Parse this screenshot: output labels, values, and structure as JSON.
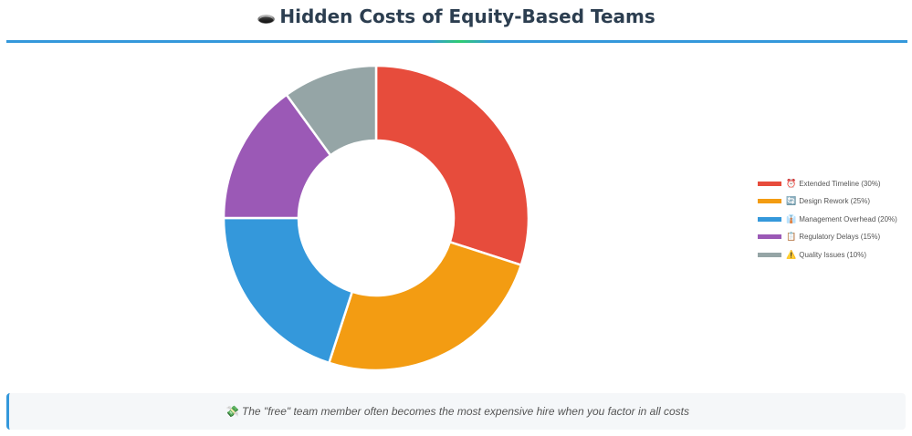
{
  "header": {
    "icon": "🕳️",
    "title": "Hidden Costs of Equity-Based Teams"
  },
  "chart_data": {
    "type": "pie",
    "donut": true,
    "categories": [
      "Extended Timeline",
      "Design Rework",
      "Management Overhead",
      "Regulatory Delays",
      "Quality Issues"
    ],
    "values": [
      30,
      25,
      20,
      15,
      10
    ],
    "colors": [
      "#e74c3c",
      "#f39c12",
      "#3498db",
      "#9b59b6",
      "#95a5a6"
    ],
    "legend_position": "right",
    "legend": [
      {
        "icon": "⏰",
        "label": "Extended Timeline (30%)",
        "color": "#e74c3c"
      },
      {
        "icon": "🔄",
        "label": "Design Rework (25%)",
        "color": "#f39c12"
      },
      {
        "icon": "👔",
        "label": "Management Overhead (20%)",
        "color": "#3498db"
      },
      {
        "icon": "📋",
        "label": "Regulatory Delays (15%)",
        "color": "#9b59b6"
      },
      {
        "icon": "⚠️",
        "label": "Quality Issues (10%)",
        "color": "#95a5a6"
      }
    ]
  },
  "footer": {
    "icon": "💸",
    "text": "The \"free\" team member often becomes the most expensive hire when you factor in all costs"
  }
}
